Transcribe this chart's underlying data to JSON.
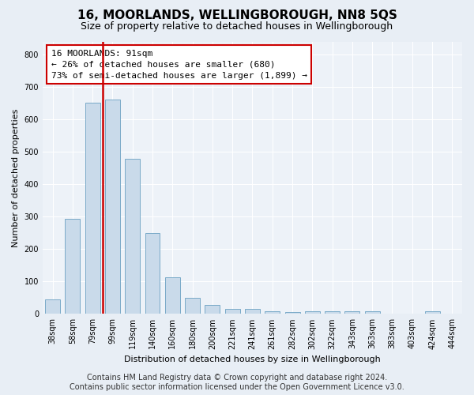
{
  "title": "16, MOORLANDS, WELLINGBOROUGH, NN8 5QS",
  "subtitle": "Size of property relative to detached houses in Wellingborough",
  "xlabel": "Distribution of detached houses by size in Wellingborough",
  "ylabel": "Number of detached properties",
  "categories": [
    "38sqm",
    "58sqm",
    "79sqm",
    "99sqm",
    "119sqm",
    "140sqm",
    "160sqm",
    "180sqm",
    "200sqm",
    "221sqm",
    "241sqm",
    "261sqm",
    "282sqm",
    "302sqm",
    "322sqm",
    "343sqm",
    "363sqm",
    "383sqm",
    "403sqm",
    "424sqm",
    "444sqm"
  ],
  "values": [
    45,
    293,
    651,
    662,
    478,
    250,
    113,
    50,
    27,
    15,
    15,
    8,
    7,
    8,
    8,
    8,
    8,
    1,
    1,
    8,
    1
  ],
  "bar_color": "#c9daea",
  "bar_edge_color": "#7aaac8",
  "vline_bar_index": 3,
  "vline_color": "#cc0000",
  "ylim": [
    0,
    840
  ],
  "yticks": [
    0,
    100,
    200,
    300,
    400,
    500,
    600,
    700,
    800
  ],
  "annotation_text": "16 MOORLANDS: 91sqm\n← 26% of detached houses are smaller (680)\n73% of semi-detached houses are larger (1,899) →",
  "annotation_box_facecolor": "#ffffff",
  "annotation_box_edgecolor": "#cc0000",
  "footer_line1": "Contains HM Land Registry data © Crown copyright and database right 2024.",
  "footer_line2": "Contains public sector information licensed under the Open Government Licence v3.0.",
  "bg_color": "#e8eef5",
  "plot_bg_color": "#edf2f8",
  "grid_color": "#ffffff",
  "title_fontsize": 11,
  "subtitle_fontsize": 9,
  "axis_label_fontsize": 8,
  "tick_fontsize": 7,
  "footer_fontsize": 7,
  "annotation_fontsize": 8,
  "bar_width": 0.75
}
